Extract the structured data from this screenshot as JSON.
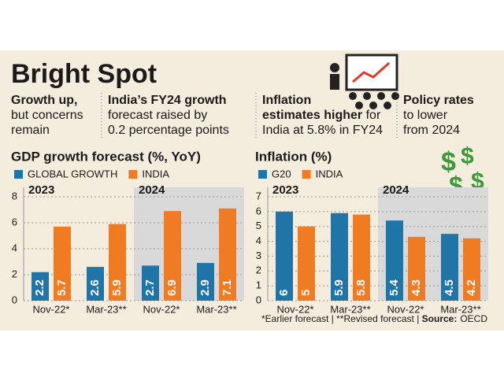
{
  "header": {
    "title": "Bright Spot",
    "points": [
      [
        {
          "b": "Growth up,"
        },
        {
          "r": "but concerns"
        },
        {
          "r": "remain"
        }
      ],
      [
        {
          "b": "India’s FY24 growth"
        },
        {
          "r": "forecast raised by"
        },
        {
          "r": "0.2 percentage points"
        }
      ],
      [
        {
          "b": "Inflation"
        },
        {
          "b": "estimates higher",
          "r": " for"
        },
        {
          "r": "India at 5.8% in FY24"
        }
      ],
      [
        {
          "b": "Policy rates"
        },
        {
          "r": "to lower"
        },
        {
          "r": "from 2024"
        }
      ]
    ]
  },
  "chart_data": [
    {
      "type": "bar",
      "title": "GDP growth forecast (%, YoY)",
      "groups": [
        "2023",
        "2024"
      ],
      "categories": [
        "Nov-22*",
        "Mar-23**",
        "Nov-22*",
        "Mar-23**"
      ],
      "series": [
        {
          "name": "GLOBAL GROWTH",
          "color": "#1f74a8",
          "values": [
            2.2,
            2.6,
            2.7,
            2.9
          ]
        },
        {
          "name": "INDIA",
          "color": "#f07b22",
          "values": [
            5.7,
            5.9,
            6.9,
            7.1
          ]
        }
      ],
      "ylim": [
        0,
        8
      ],
      "yticks": [
        0,
        2,
        4,
        6,
        8
      ],
      "grid": true
    },
    {
      "type": "bar",
      "title": "Inflation (%)",
      "groups": [
        "2023",
        "2024"
      ],
      "categories": [
        "Nov-22*",
        "Mar-23**",
        "Nov-22*",
        "Mar-23**"
      ],
      "series": [
        {
          "name": "G20",
          "color": "#1f74a8",
          "values": [
            6,
            5.9,
            5.4,
            4.5
          ]
        },
        {
          "name": "INDIA",
          "color": "#f07b22",
          "values": [
            5,
            5.8,
            4.3,
            4.2
          ]
        }
      ],
      "ylim": [
        0,
        7
      ],
      "yticks": [
        0,
        1,
        2,
        3,
        4,
        5,
        6,
        7
      ],
      "grid": true
    }
  ],
  "footnote": {
    "notes": "*Earlier forecast | **Revised forecast | ",
    "source_label": "Source:",
    "source": "OECD"
  }
}
